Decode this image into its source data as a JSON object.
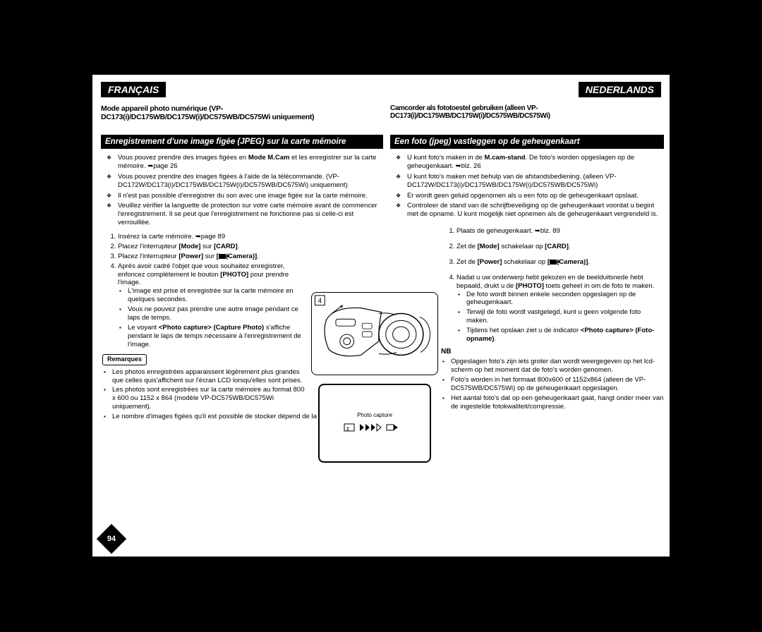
{
  "lang_fr": "FRANÇAIS",
  "lang_nl": "NEDERLANDS",
  "chapter_fr": "Mode appareil photo numérique (VP-DC173(i)/DC175WB/DC175W(i)/DC575WB/DC575Wi uniquement)",
  "chapter_nl": "Camcorder als fototoestel gebruiken (alleen VP-DC173(i)/DC175WB/DC175W(i)/DC575WB/DC575Wi)",
  "section_fr": "Enregistrement d'une image figée (JPEG) sur la carte mémoire",
  "section_nl": "Een foto (jpeg) vastleggen op de geheugenkaart",
  "fr": {
    "bullets": [
      "Vous pouvez prendre des images figées en <b>Mode M.Cam</b> et les enregistrer sur la carte mémoire. ➥page 26",
      "Vous pouvez prendre des images figées à l'aide de la télécommande. (VP-DC172W/DC173(i)/DC175WB/DC175W(i)/DC575WB/DC575Wi) uniquement)",
      "Il n'est pas possible d'enregistrer du son avec une image figée sur la carte mémoire.",
      "Veuillez vérifier la languette de protection sur votre carte mémoire avant de commencer l'enregistrement. Il se peut que l'enregistrement ne fonctionne pas si celle-ci est verrouillée."
    ],
    "steps": [
      "Insérez la carte mémoire. ➥page 89",
      "Placez l'interrupteur <b>[Mode]</b> sur <b>[CARD]</b>.",
      "Placez l'interrupteur <b>[Power]</b> sur <b>[<span class='cam-icon'></span>(Camera)]</b>.",
      "Après avoir cadré l'objet que vous souhaitez enregistrer, enfoncez complètement le bouton <b>[PHOTO]</b> pour prendre l'image."
    ],
    "substeps": [
      "L'image est prise et enregistrée sur la carte mémoire en quelques secondes.",
      "Vous ne pouvez pas prendre une autre image pendant ce laps de temps.",
      "Le voyant <b>&lt;Photo capture&gt; (Capture Photo)</b> s'affiche pendant le laps de temps nécessaire à l'enregistrement de l'image."
    ],
    "notes_label": "Remarques",
    "notes": [
      "Les photos enregistrées apparaissent légèrement plus grandes que celles quis'affichent sur l'écran LCD lorsqu'elles sont prises.",
      "Les photos sont enregistrées sur la carte mémoire au format 800 x 600 ou 1152 x 864 (modèle VP-DC575WB/DC575Wi uniquement).",
      "Le nombre d'images figées qu'il est possible de stocker dépend de la qualité de l'image."
    ]
  },
  "nl": {
    "bullets": [
      "U kunt foto's maken in de <b>M.cam-stand</b>. De foto's worden opgeslagen op de geheugenkaart. ➥blz. 26",
      "U kunt foto's maken met behulp van de afstandsbediening. (alleen VP-DC172W/DC173(i)/DC175WB/DC175W(i)/DC575WB/DC575Wi)",
      "Er wordt geen geluid opgenomen als u een foto op de geheugenkaart opslaat.",
      "Controleer de stand van de schrijfbeveiliging op de geheugenkaart voordat u begint met de opname. U kunt mogelijk niet opnemen als de geheugenkaart vergrendeld is."
    ],
    "steps": [
      "Plaats de geheugenkaart. ➥blz. 89",
      "Zet de <b>[Mode]</b> schakelaar op <b>[CARD]</b>.",
      "Zet de <b>[Power]</b> schakelaar op <b>[<span class='cam-icon'></span>(Camera)]</b>.",
      "Nadat u uw onderwerp hebt gekozen en de beelduitsnede hebt bepaald, drukt u de <b>[PHOTO]</b> toets geheel in om de foto te maken."
    ],
    "substeps": [
      "De foto wordt binnen enkele seconden opgeslagen op de geheugenkaart.",
      "Terwijl de foto wordt vastgelegd, kunt u geen volgende foto maken.",
      "Tijdens het opslaan ziet u de indicator <b>&lt;Photo capture&gt; (Foto-opname)</b>."
    ],
    "notes_label": "NB",
    "notes": [
      "Opgeslagen foto's zijn iets groter dan wordt weergegeven op het lcd-scherm op het moment dat de foto's worden genomen.",
      "Foto's worden in het formaat 800x600 of 1152x864 (alleen de VP-DC575WB/DC575Wi) op de geheugenkaart opgeslagen.",
      "Het aantal foto's dat op een geheugenkaart gaat, hangt onder meer van de ingestelde fotokwaliteit/compressie."
    ]
  },
  "callout_num": "4",
  "lcd_text": "Photo capture",
  "page_number": "94",
  "colors": {
    "bg": "#000000",
    "page": "#ffffff",
    "text": "#000000"
  }
}
